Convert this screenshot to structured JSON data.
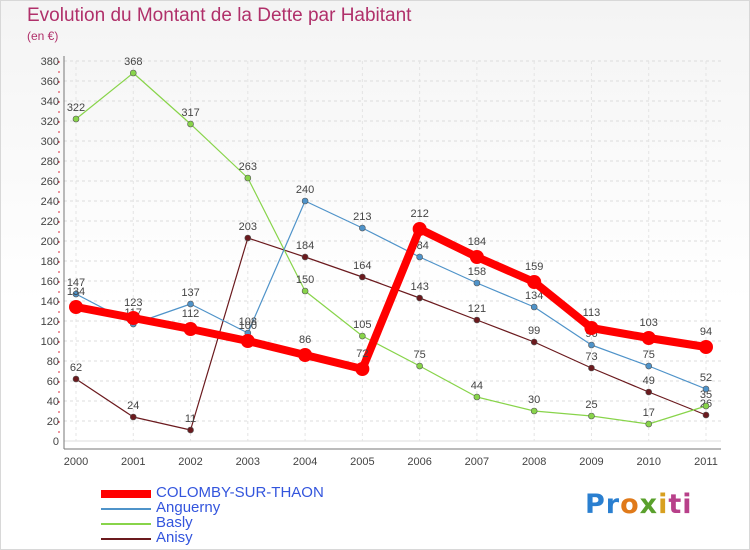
{
  "chart_data": {
    "type": "line",
    "title": "Evolution du Montant de la Dette par Habitant",
    "subtitle": "(en €)",
    "x": [
      "2000",
      "2001",
      "2002",
      "2003",
      "2004",
      "2005",
      "2006",
      "2007",
      "2008",
      "2009",
      "2010",
      "2011"
    ],
    "ylim": [
      0,
      380
    ],
    "yticks": [
      0,
      20,
      40,
      60,
      80,
      100,
      120,
      140,
      160,
      180,
      200,
      220,
      240,
      260,
      280,
      300,
      320,
      340,
      360,
      380
    ],
    "grid": true,
    "legend_position": "bottom-left",
    "series": [
      {
        "name": "Anisy",
        "color": "#6b1a1e",
        "values": [
          62,
          24,
          11,
          203,
          184,
          164,
          143,
          121,
          99,
          73,
          49,
          26
        ]
      },
      {
        "name": "Basly",
        "color": "#88d44a",
        "values": [
          322,
          368,
          317,
          263,
          150,
          105,
          75,
          44,
          30,
          25,
          17,
          35
        ]
      },
      {
        "name": "Anguerny",
        "color": "#4f93c9",
        "values": [
          147,
          117,
          137,
          108,
          240,
          213,
          184,
          158,
          134,
          96,
          75,
          52
        ]
      },
      {
        "name": "COLOMBY-SUR-THAON",
        "color": "#ff0000",
        "values": [
          134,
          123,
          112,
          100,
          86,
          72,
          212,
          184,
          159,
          113,
          103,
          94
        ],
        "highlight": true
      }
    ]
  },
  "legend": {
    "items": [
      {
        "label": "COLOMBY-SUR-THAON",
        "color": "#ff0000"
      },
      {
        "label": "Anguerny",
        "color": "#4f93c9"
      },
      {
        "label": "Basly",
        "color": "#88d44a"
      },
      {
        "label": "Anisy",
        "color": "#6b1a1e"
      }
    ]
  },
  "logo": {
    "parts": [
      "Pr",
      "o",
      "x",
      "i",
      "ti"
    ]
  }
}
